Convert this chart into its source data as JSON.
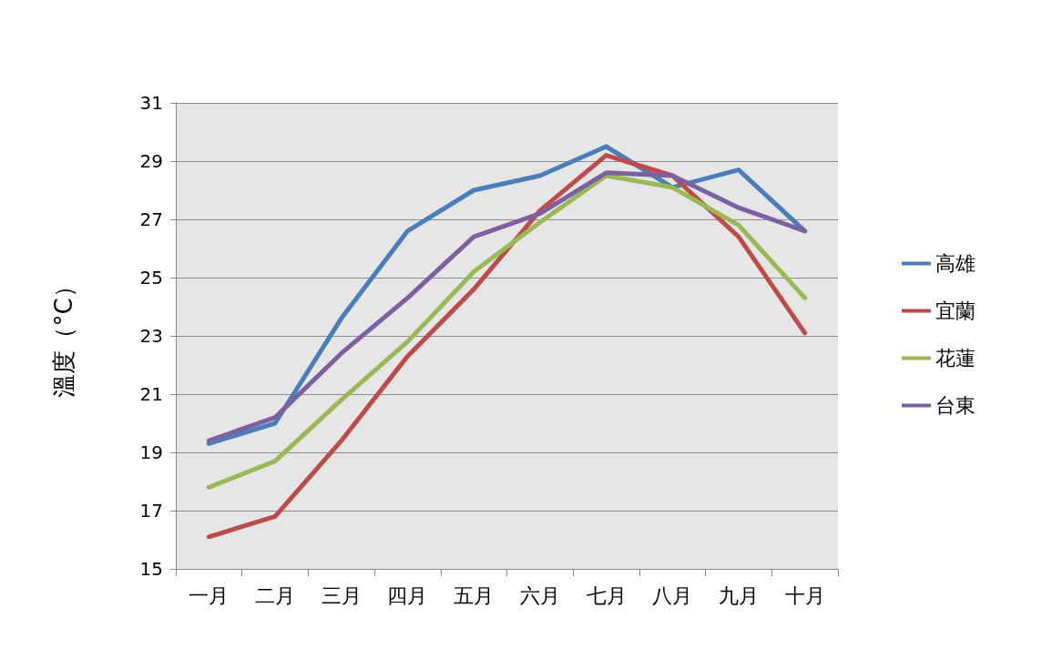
{
  "chart_data": {
    "type": "line",
    "ylabel": "溫度（°C）",
    "categories": [
      "一月",
      "二月",
      "三月",
      "四月",
      "五月",
      "六月",
      "七月",
      "八月",
      "九月",
      "十月"
    ],
    "series": [
      {
        "name": "高雄",
        "color": "#4a7ebb",
        "values": [
          19.3,
          20.0,
          23.6,
          26.6,
          28.0,
          28.5,
          29.5,
          28.1,
          28.7,
          26.6
        ]
      },
      {
        "name": "宜蘭",
        "color": "#be4b48",
        "values": [
          16.1,
          16.8,
          19.4,
          22.3,
          24.6,
          27.3,
          29.2,
          28.5,
          26.4,
          23.1
        ]
      },
      {
        "name": "花蓮",
        "color": "#98b954",
        "values": [
          17.8,
          18.7,
          20.8,
          22.8,
          25.2,
          26.9,
          28.5,
          28.1,
          26.8,
          24.3
        ]
      },
      {
        "name": "台東",
        "color": "#7d60a0",
        "values": [
          19.4,
          20.2,
          22.4,
          24.3,
          26.4,
          27.2,
          28.6,
          28.5,
          27.4,
          26.6
        ]
      }
    ],
    "ylim": [
      15,
      31
    ],
    "yticks": [
      15,
      17,
      19,
      21,
      23,
      25,
      27,
      29,
      31
    ],
    "grid": "y",
    "legend": "right",
    "marker": "none",
    "line_style": "solid"
  }
}
